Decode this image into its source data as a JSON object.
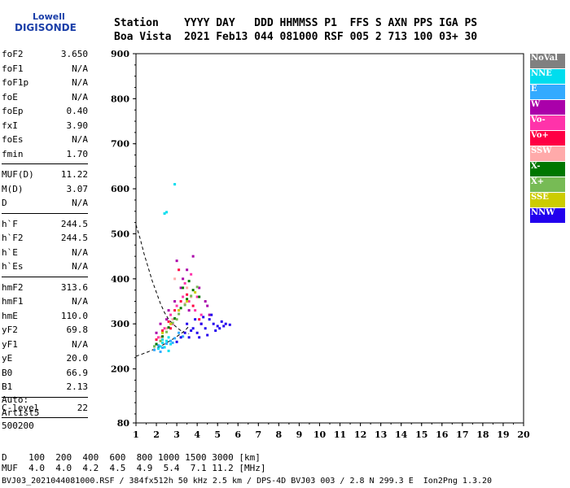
{
  "logo": {
    "line1": "Lowell",
    "line2": "DIGISONDE"
  },
  "header": {
    "row1": "Station    YYYY DAY   DDD HHMMSS P1  FFS S AXN PPS IGA PS",
    "row2": "Boa Vista  2021 Feb13 044 081000 RSF 005 2 713 100 03+ 30"
  },
  "params": [
    [
      {
        "label": "foF2",
        "value": "3.650"
      },
      {
        "label": "foF1",
        "value": "N/A"
      },
      {
        "label": "foF1p",
        "value": "N/A"
      },
      {
        "label": "foE",
        "value": "N/A"
      },
      {
        "label": "foEp",
        "value": "0.40"
      },
      {
        "label": "fxI",
        "value": "3.90"
      },
      {
        "label": "foEs",
        "value": "N/A"
      },
      {
        "label": "fmin",
        "value": "1.70"
      }
    ],
    [
      {
        "label": "MUF(D)",
        "value": "11.22"
      },
      {
        "label": "M(D)",
        "value": "3.07"
      },
      {
        "label": "D",
        "value": "N/A"
      }
    ],
    [
      {
        "label": "h`F",
        "value": "244.5"
      },
      {
        "label": "h`F2",
        "value": "244.5"
      },
      {
        "label": "h`E",
        "value": "N/A"
      },
      {
        "label": "h`Es",
        "value": "N/A"
      }
    ],
    [
      {
        "label": "hmF2",
        "value": "313.6"
      },
      {
        "label": "hmF1",
        "value": "N/A"
      },
      {
        "label": "hmE",
        "value": "110.0"
      },
      {
        "label": "yF2",
        "value": "69.8"
      },
      {
        "label": "yF1",
        "value": "N/A"
      },
      {
        "label": "yE",
        "value": "20.0"
      },
      {
        "label": "B0",
        "value": "66.9"
      },
      {
        "label": "B1",
        "value": "2.13"
      }
    ],
    [
      {
        "label": "C-level",
        "value": "22"
      }
    ]
  ],
  "auto": {
    "line1": "Auto:",
    "line2": "Artist5",
    "line3": "500200"
  },
  "freq_table": {
    "row1": "D    100  200  400  600  800 1000 1500 3000 [km]",
    "row2": "MUF  4.0  4.0  4.2  4.5  4.9  5.4  7.1 11.2 [MHz]"
  },
  "footer": "BVJ03_2021044081000.RSF / 384fx512h 50 kHz 2.5 km / DPS-4D BVJ03 003 / 2.8 N 299.3 E  Ion2Png 1.3.20",
  "legend": [
    {
      "label": "NoVal",
      "color": "#808080"
    },
    {
      "label": "NNE",
      "color": "#00ddee"
    },
    {
      "label": "E",
      "color": "#33aaff"
    },
    {
      "label": "W",
      "color": "#aa00aa"
    },
    {
      "label": "Vo-",
      "color": "#ff33aa"
    },
    {
      "label": "Vo+",
      "color": "#ff0044"
    },
    {
      "label": "SSW",
      "color": "#ffaaaa"
    },
    {
      "label": "X-",
      "color": "#007700"
    },
    {
      "label": "X+",
      "color": "#77bb55"
    },
    {
      "label": "SSE",
      "color": "#cccc00"
    },
    {
      "label": "NNW",
      "color": "#2200ee"
    }
  ],
  "chart_data": {
    "type": "scatter",
    "title": "",
    "xlabel": "",
    "ylabel": "",
    "xlim": [
      1,
      20
    ],
    "ylim": [
      80,
      900
    ],
    "x_ticks": [
      1,
      2,
      3,
      4,
      5,
      6,
      7,
      8,
      9,
      10,
      11,
      12,
      13,
      14,
      15,
      16,
      17,
      18,
      19,
      20
    ],
    "y_ticks": [
      80,
      200,
      300,
      400,
      500,
      600,
      700,
      800,
      900
    ],
    "grid": false,
    "legend_position": "right",
    "series": [
      {
        "name": "NNE",
        "color": "#00ddee",
        "points": [
          [
            1.9,
            250
          ],
          [
            2.0,
            255
          ],
          [
            2.1,
            245
          ],
          [
            2.2,
            250
          ],
          [
            2.3,
            258
          ],
          [
            2.4,
            248
          ],
          [
            2.5,
            262
          ],
          [
            2.6,
            240
          ],
          [
            2.7,
            255
          ],
          [
            2.4,
            545
          ],
          [
            2.5,
            548
          ],
          [
            2.9,
            610
          ],
          [
            2.3,
            265
          ],
          [
            2.6,
            270
          ]
        ]
      },
      {
        "name": "E",
        "color": "#33aaff",
        "points": [
          [
            1.9,
            242
          ],
          [
            2.1,
            252
          ],
          [
            2.3,
            247
          ],
          [
            2.5,
            256
          ],
          [
            2.7,
            262
          ],
          [
            2.9,
            268
          ],
          [
            3.1,
            280
          ],
          [
            3.3,
            272
          ],
          [
            2.2,
            238
          ],
          [
            2.8,
            258
          ]
        ]
      },
      {
        "name": "W",
        "color": "#aa00aa",
        "points": [
          [
            2.0,
            280
          ],
          [
            2.2,
            300
          ],
          [
            2.6,
            330
          ],
          [
            2.9,
            350
          ],
          [
            3.2,
            380
          ],
          [
            3.5,
            420
          ],
          [
            3.8,
            450
          ],
          [
            4.1,
            380
          ],
          [
            4.4,
            350
          ],
          [
            4.6,
            320
          ],
          [
            3.0,
            440
          ],
          [
            3.6,
            330
          ],
          [
            4.2,
            300
          ],
          [
            4.5,
            340
          ],
          [
            2.5,
            310
          ],
          [
            3.3,
            400
          ]
        ]
      },
      {
        "name": "Vo-",
        "color": "#ff33aa",
        "points": [
          [
            2.1,
            270
          ],
          [
            2.4,
            290
          ],
          [
            2.7,
            320
          ],
          [
            3.0,
            340
          ],
          [
            3.3,
            360
          ],
          [
            3.6,
            350
          ],
          [
            3.9,
            330
          ],
          [
            4.2,
            320
          ],
          [
            3.4,
            390
          ],
          [
            2.8,
            300
          ],
          [
            3.7,
            410
          ],
          [
            4.0,
            360
          ]
        ]
      },
      {
        "name": "Vo+",
        "color": "#ff0044",
        "points": [
          [
            2.0,
            265
          ],
          [
            2.3,
            285
          ],
          [
            2.6,
            305
          ],
          [
            2.9,
            330
          ],
          [
            3.2,
            350
          ],
          [
            3.5,
            365
          ],
          [
            3.8,
            340
          ],
          [
            4.1,
            310
          ],
          [
            3.1,
            420
          ],
          [
            2.7,
            290
          ]
        ]
      },
      {
        "name": "SSW",
        "color": "#ffaaaa",
        "points": [
          [
            2.2,
            270
          ],
          [
            2.5,
            290
          ],
          [
            2.8,
            310
          ],
          [
            3.1,
            330
          ],
          [
            3.4,
            345
          ],
          [
            3.7,
            360
          ],
          [
            2.9,
            400
          ],
          [
            3.5,
            380
          ]
        ]
      },
      {
        "name": "X-",
        "color": "#007700",
        "points": [
          [
            2.0,
            255
          ],
          [
            2.3,
            272
          ],
          [
            2.6,
            292
          ],
          [
            2.9,
            312
          ],
          [
            3.2,
            335
          ],
          [
            3.5,
            355
          ],
          [
            3.8,
            375
          ],
          [
            4.1,
            360
          ],
          [
            3.3,
            380
          ],
          [
            3.6,
            395
          ]
        ]
      },
      {
        "name": "X+",
        "color": "#77bb55",
        "points": [
          [
            1.9,
            250
          ],
          [
            2.2,
            262
          ],
          [
            2.5,
            282
          ],
          [
            2.8,
            302
          ],
          [
            3.1,
            322
          ],
          [
            3.4,
            342
          ],
          [
            3.7,
            362
          ],
          [
            4.0,
            382
          ],
          [
            3.0,
            310
          ]
        ]
      },
      {
        "name": "SSE",
        "color": "#cccc00",
        "points": [
          [
            2.3,
            280
          ],
          [
            2.7,
            300
          ],
          [
            3.1,
            330
          ],
          [
            3.5,
            350
          ],
          [
            3.9,
            370
          ]
        ]
      },
      {
        "name": "NNW",
        "color": "#2200ee",
        "points": [
          [
            3.0,
            260
          ],
          [
            3.2,
            270
          ],
          [
            3.4,
            280
          ],
          [
            3.6,
            270
          ],
          [
            3.8,
            290
          ],
          [
            4.0,
            280
          ],
          [
            4.2,
            300
          ],
          [
            4.4,
            290
          ],
          [
            4.6,
            310
          ],
          [
            4.8,
            300
          ],
          [
            5.0,
            295
          ],
          [
            5.2,
            305
          ],
          [
            5.4,
            300
          ],
          [
            5.6,
            298
          ],
          [
            4.1,
            270
          ],
          [
            4.5,
            275
          ],
          [
            4.9,
            285
          ],
          [
            3.9,
            310
          ],
          [
            4.3,
            315
          ],
          [
            4.7,
            320
          ],
          [
            5.1,
            290
          ],
          [
            5.3,
            295
          ],
          [
            3.5,
            300
          ],
          [
            3.7,
            285
          ]
        ]
      }
    ],
    "trace": {
      "style": "dashed",
      "points": [
        [
          1.0,
          520
        ],
        [
          1.2,
          490
        ],
        [
          1.4,
          455
        ],
        [
          1.6,
          425
        ],
        [
          1.8,
          395
        ],
        [
          2.0,
          370
        ],
        [
          2.2,
          345
        ],
        [
          2.4,
          325
        ],
        [
          2.6,
          310
        ],
        [
          2.8,
          300
        ],
        [
          3.0,
          292
        ],
        [
          3.2,
          285
        ],
        [
          3.4,
          280
        ],
        [
          3.6,
          278
        ]
      ]
    },
    "trace_low": {
      "style": "dashed",
      "points": [
        [
          1.0,
          228
        ],
        [
          1.3,
          233
        ],
        [
          1.6,
          238
        ],
        [
          1.9,
          244
        ],
        [
          2.2,
          250
        ],
        [
          2.5,
          258
        ],
        [
          2.8,
          266
        ],
        [
          3.1,
          275
        ],
        [
          3.4,
          285
        ],
        [
          3.6,
          295
        ]
      ]
    }
  }
}
